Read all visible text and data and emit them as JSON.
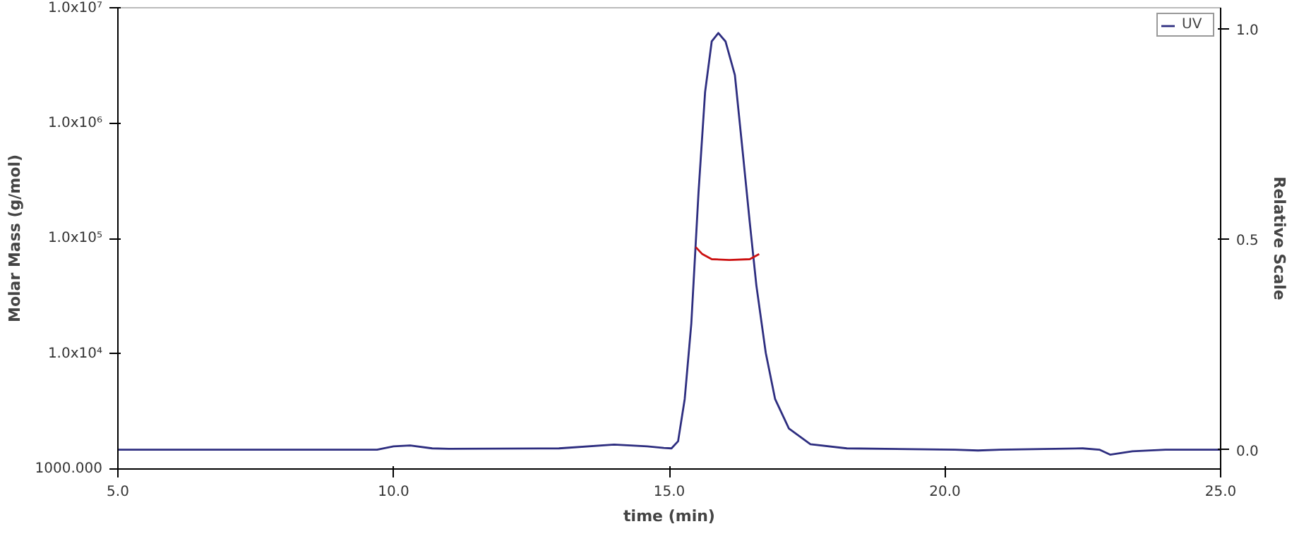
{
  "chart_data": {
    "type": "line",
    "xlabel": "time (min)",
    "ylabel": "Molar Mass (g/mol)",
    "y2label": "Relative Scale",
    "xlim": [
      5,
      25
    ],
    "xticks": [
      {
        "value": 5,
        "label": "5.0"
      },
      {
        "value": 10,
        "label": "10.0"
      },
      {
        "value": 15,
        "label": "15.0"
      },
      {
        "value": 20,
        "label": "20.0"
      },
      {
        "value": 25,
        "label": "25.0"
      }
    ],
    "ylim": [
      1000,
      10000000
    ],
    "yticks": [
      {
        "value": 1000,
        "label": "1000.000"
      },
      {
        "value": 10000,
        "label": "1.0x10⁴"
      },
      {
        "value": 100000,
        "label": "1.0x10⁵"
      },
      {
        "value": 1000000,
        "label": "1.0x10⁶"
      },
      {
        "value": 10000000,
        "label": "1.0x10⁷"
      }
    ],
    "y2lim": [
      -0.046,
      1.05
    ],
    "y2ticks": [
      {
        "value": 0,
        "label": "0.0"
      },
      {
        "value": 0.5,
        "label": "0.5"
      },
      {
        "value": 1,
        "label": "1.0"
      }
    ],
    "log": "y",
    "grid": false,
    "legend": "top right",
    "marker": "none",
    "line_style": "solid",
    "series": [
      {
        "name": "UV",
        "color": "#2e2e80",
        "axis": "y2",
        "x": [
          5.0,
          9.7,
          10.0,
          10.3,
          10.7,
          11.0,
          13.0,
          14.0,
          14.6,
          14.9,
          15.04,
          15.16,
          15.28,
          15.4,
          15.53,
          15.65,
          15.77,
          15.89,
          16.02,
          16.19,
          16.33,
          16.46,
          16.58,
          16.75,
          16.92,
          17.17,
          17.56,
          18.22,
          20.18,
          20.6,
          21.0,
          22.5,
          22.8,
          23.0,
          23.4,
          24.0,
          25.0
        ],
        "values": [
          0.0,
          0.0,
          0.008,
          0.01,
          0.003,
          0.002,
          0.003,
          0.012,
          0.008,
          0.004,
          0.003,
          0.02,
          0.12,
          0.3,
          0.61,
          0.85,
          0.97,
          0.99,
          0.97,
          0.89,
          0.71,
          0.54,
          0.39,
          0.23,
          0.12,
          0.05,
          0.013,
          0.003,
          0.0,
          -0.002,
          0.0,
          0.003,
          0.0,
          -0.012,
          -0.004,
          0.0,
          0.0
        ]
      },
      {
        "color": "#cc1111",
        "x": [
          15.48,
          15.6,
          15.77,
          16.09,
          16.46,
          16.63
        ],
        "values": [
          84000,
          73000,
          66000,
          65000,
          66000,
          73000
        ]
      }
    ]
  }
}
